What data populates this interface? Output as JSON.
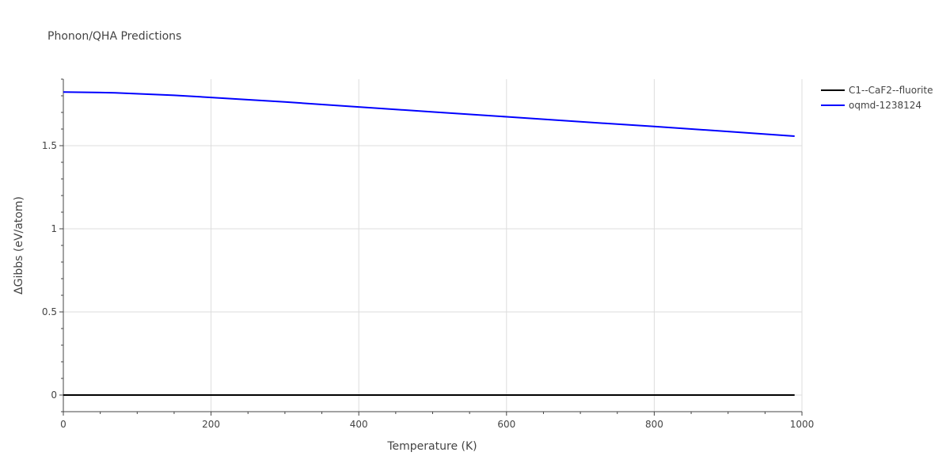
{
  "chart_data": {
    "type": "line",
    "title": "Phonon/QHA Predictions",
    "xlabel": "Temperature (K)",
    "ylabel": "ΔGibbs (eV/atom)",
    "xlim": [
      0,
      1000
    ],
    "ylim": [
      -0.1,
      1.9
    ],
    "x_ticks": [
      0,
      200,
      400,
      600,
      800,
      1000
    ],
    "y_ticks": [
      0,
      0.5,
      1,
      1.5
    ],
    "x_tick_labels": [
      "0",
      "200",
      "400",
      "600",
      "800",
      "1000"
    ],
    "y_tick_labels": [
      "0",
      "0.5",
      "1",
      "1.5"
    ],
    "grid": true,
    "legend_position": "top-right",
    "series": [
      {
        "name": "C1--CaF2--fluorite",
        "color": "#000000",
        "x": [
          0,
          100,
          200,
          300,
          400,
          500,
          600,
          700,
          800,
          900,
          990
        ],
        "y": [
          0,
          0,
          0,
          0,
          0,
          0,
          0,
          0,
          0,
          0,
          0
        ]
      },
      {
        "name": "oqmd-1238124",
        "color": "#0000ff",
        "x": [
          0,
          70,
          150,
          200,
          300,
          400,
          500,
          600,
          700,
          800,
          900,
          990
        ],
        "y": [
          1.823,
          1.818,
          1.803,
          1.79,
          1.763,
          1.733,
          1.703,
          1.674,
          1.644,
          1.615,
          1.585,
          1.557
        ]
      }
    ]
  }
}
